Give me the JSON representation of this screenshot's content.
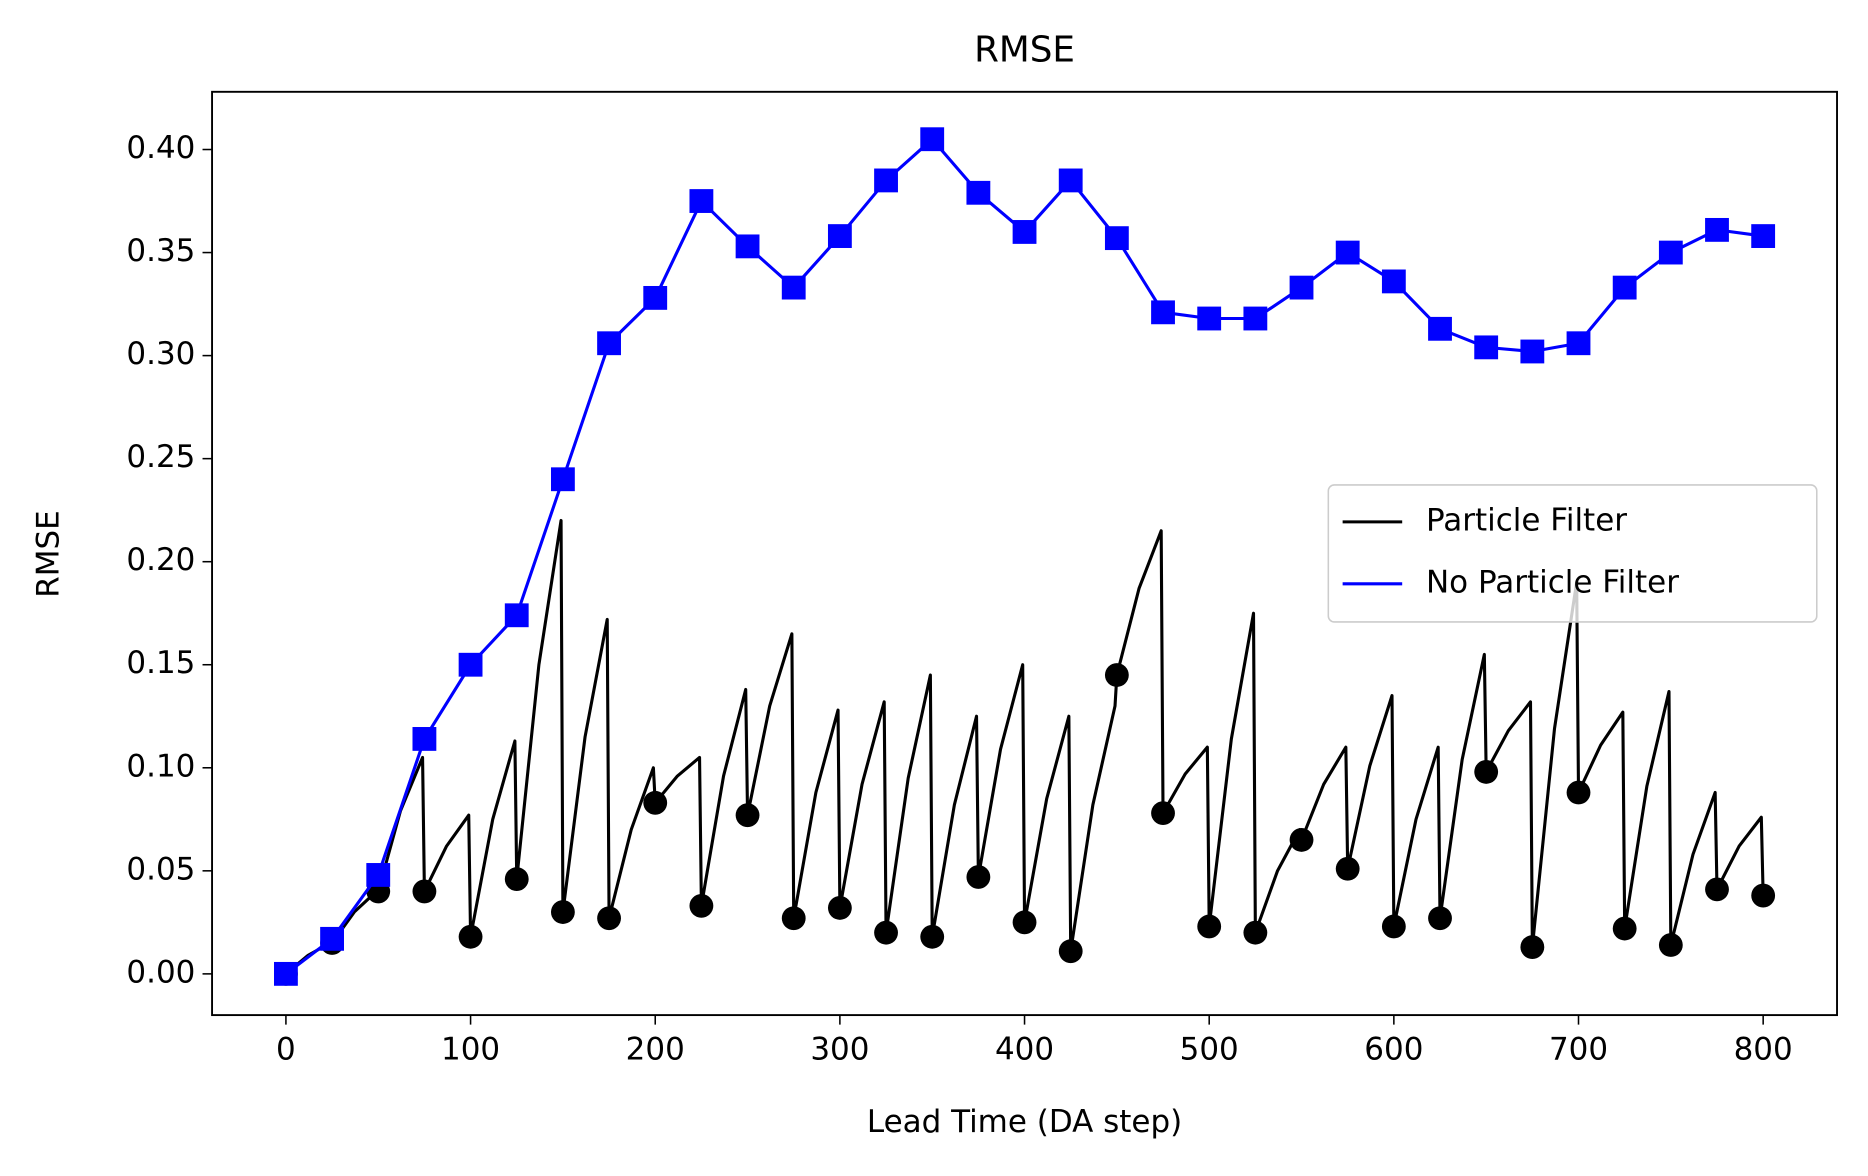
{
  "chart_data": {
    "type": "line",
    "title": "RMSE",
    "x_label": "Lead Time (DA step)",
    "y_label": "RMSE",
    "xlim": [
      -40,
      840
    ],
    "ylim": [
      -0.02,
      0.428
    ],
    "xticks": [
      0,
      100,
      200,
      300,
      400,
      500,
      600,
      700,
      800
    ],
    "yticks": [
      {
        "value": 0,
        "label": "0.00"
      },
      {
        "value": 0.05,
        "label": "0.05"
      },
      {
        "value": 0.1,
        "label": "0.10"
      },
      {
        "value": 0.15,
        "label": "0.15"
      },
      {
        "value": 0.2,
        "label": "0.20"
      },
      {
        "value": 0.25,
        "label": "0.25"
      },
      {
        "value": 0.3,
        "label": "0.30"
      },
      {
        "value": 0.35,
        "label": "0.35"
      },
      {
        "value": 0.4,
        "label": "0.40"
      }
    ],
    "grid": false,
    "legend": "center right",
    "series": [
      {
        "name": "Particle Filter",
        "color": "#000000",
        "marker": "circle",
        "marker_every": 25,
        "x": [
          0,
          12,
          24,
          25,
          37,
          49,
          50,
          62,
          74,
          75,
          87,
          99,
          100,
          112,
          124,
          125,
          137,
          149,
          150,
          162,
          174,
          175,
          187,
          199,
          200,
          212,
          224,
          225,
          237,
          249,
          250,
          262,
          274,
          275,
          287,
          299,
          300,
          312,
          324,
          325,
          337,
          349,
          350,
          362,
          374,
          375,
          387,
          399,
          400,
          412,
          424,
          425,
          437,
          449,
          450,
          462,
          474,
          475,
          487,
          499,
          500,
          512,
          524,
          525,
          537,
          549,
          550,
          562,
          574,
          575,
          587,
          599,
          600,
          612,
          624,
          625,
          637,
          649,
          650,
          662,
          674,
          675,
          687,
          699,
          700,
          712,
          724,
          725,
          737,
          749,
          750,
          762,
          774,
          775,
          787,
          799,
          800
        ],
        "values": [
          0,
          0.009,
          0.015,
          0.015,
          0.03,
          0.04,
          0.04,
          0.079,
          0.105,
          0.04,
          0.062,
          0.077,
          0.018,
          0.075,
          0.113,
          0.046,
          0.15,
          0.22,
          0.03,
          0.115,
          0.172,
          0.027,
          0.07,
          0.1,
          0.083,
          0.096,
          0.105,
          0.033,
          0.096,
          0.138,
          0.077,
          0.13,
          0.165,
          0.027,
          0.088,
          0.128,
          0.032,
          0.092,
          0.132,
          0.02,
          0.095,
          0.145,
          0.018,
          0.082,
          0.125,
          0.047,
          0.109,
          0.15,
          0.025,
          0.085,
          0.125,
          0.011,
          0.082,
          0.13,
          0.145,
          0.187,
          0.215,
          0.078,
          0.097,
          0.11,
          0.023,
          0.114,
          0.175,
          0.02,
          0.05,
          0.07,
          0.065,
          0.092,
          0.11,
          0.051,
          0.101,
          0.135,
          0.023,
          0.075,
          0.11,
          0.027,
          0.104,
          0.155,
          0.098,
          0.118,
          0.132,
          0.013,
          0.119,
          0.19,
          0.088,
          0.111,
          0.127,
          0.022,
          0.091,
          0.137,
          0.014,
          0.058,
          0.088,
          0.041,
          0.062,
          0.076,
          0.038
        ]
      },
      {
        "name": "No Particle Filter",
        "color": "#0000ff",
        "marker": "square",
        "marker_every": 25,
        "x": [
          0,
          25,
          50,
          75,
          100,
          125,
          150,
          175,
          200,
          225,
          250,
          275,
          300,
          325,
          350,
          375,
          400,
          425,
          450,
          475,
          500,
          525,
          550,
          575,
          600,
          625,
          650,
          675,
          700,
          725,
          750,
          775,
          800
        ],
        "values": [
          0,
          0.017,
          0.048,
          0.114,
          0.15,
          0.174,
          0.24,
          0.306,
          0.328,
          0.375,
          0.353,
          0.333,
          0.358,
          0.385,
          0.405,
          0.379,
          0.36,
          0.385,
          0.357,
          0.321,
          0.318,
          0.318,
          0.333,
          0.35,
          0.336,
          0.313,
          0.304,
          0.302,
          0.306,
          0.333,
          0.35,
          0.361,
          0.358
        ]
      }
    ]
  }
}
